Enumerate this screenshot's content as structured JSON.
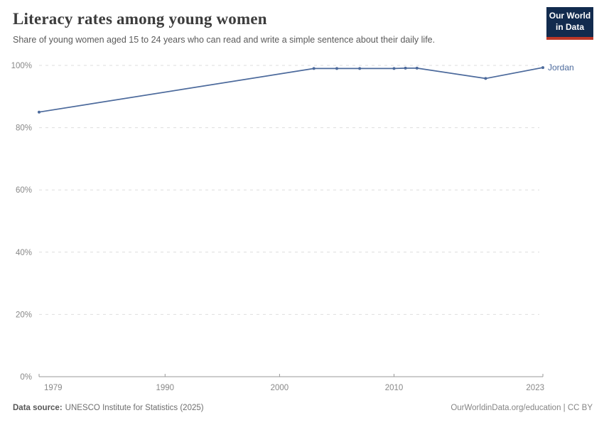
{
  "header": {
    "title": "Literacy rates among young women",
    "subtitle": "Share of young women aged 15 to 24 years who can read and write a simple sentence about their daily life.",
    "logo_line1": "Our World",
    "logo_line2": "in Data"
  },
  "chart_data": {
    "type": "line",
    "title": "Literacy rates among young women",
    "xlabel": "",
    "ylabel": "",
    "xlim": [
      1979,
      2023
    ],
    "ylim": [
      0,
      100
    ],
    "grid": "horizontal-dashed",
    "legend": "line-end-label",
    "x_ticks": [
      {
        "value": 1979,
        "label": "1979"
      },
      {
        "value": 1990,
        "label": "1990"
      },
      {
        "value": 2000,
        "label": "2000"
      },
      {
        "value": 2010,
        "label": "2010"
      },
      {
        "value": 2023,
        "label": "2023"
      }
    ],
    "y_ticks": [
      {
        "value": 0,
        "label": "0%"
      },
      {
        "value": 20,
        "label": "20%"
      },
      {
        "value": 40,
        "label": "40%"
      },
      {
        "value": 60,
        "label": "60%"
      },
      {
        "value": 80,
        "label": "80%"
      },
      {
        "value": 100,
        "label": "100%"
      }
    ],
    "series": [
      {
        "name": "Jordan",
        "color": "#4C6A9C",
        "points": [
          [
            1979,
            85.0
          ],
          [
            2003,
            99.0
          ],
          [
            2005,
            99.0
          ],
          [
            2007,
            99.0
          ],
          [
            2010,
            99.0
          ],
          [
            2011,
            99.1
          ],
          [
            2012,
            99.1
          ],
          [
            2018,
            95.8
          ],
          [
            2023,
            99.3
          ]
        ]
      }
    ]
  },
  "footer": {
    "source_label": "Data source:",
    "source_text": "UNESCO Institute for Statistics (2025)",
    "right_text": "OurWorldinData.org/education | CC BY"
  },
  "colors": {
    "line": "#4C6A9C",
    "grid": "#dedede",
    "axis": "#9a9a9a",
    "tick_label": "#888888",
    "logo_bg": "#122b4e",
    "logo_accent": "#bc3727"
  }
}
